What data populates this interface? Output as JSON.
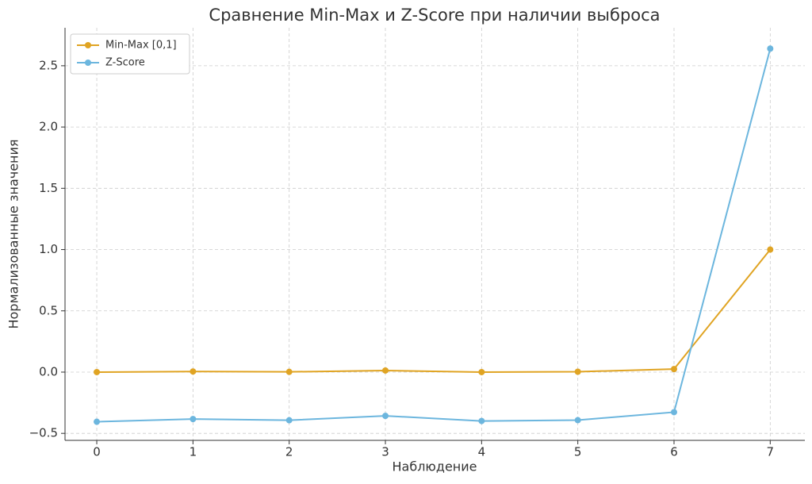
{
  "chart_data": {
    "type": "line",
    "title": "Сравнение Min-Max и Z-Score при наличии выброса",
    "x_label": "Наблюдение",
    "y_label": "Нормализованные значения",
    "x": [
      0,
      1,
      2,
      3,
      4,
      5,
      6,
      7
    ],
    "series": [
      {
        "name": "Min-Max [0,1]",
        "color": "#e0a423",
        "values": [
          0,
          0.005,
          0.002,
          0.013,
          0,
          0.003,
          0.025,
          1.0
        ]
      },
      {
        "name": "Z-Score",
        "color": "#6cb6de",
        "values": [
          -0.405,
          -0.383,
          -0.393,
          -0.357,
          -0.399,
          -0.392,
          -0.327,
          2.64
        ]
      }
    ],
    "xlim": [
      -0.33,
      7.36
    ],
    "ylim": [
      -0.557,
      2.81
    ],
    "xticks": [
      0,
      1,
      2,
      3,
      4,
      5,
      6,
      7
    ],
    "yticks": [
      {
        "value": -0.5,
        "label": "−0.5"
      },
      {
        "value": 0,
        "label": "0.0"
      },
      0.5,
      {
        "value": 1,
        "label": "1.0"
      },
      1.5,
      {
        "value": 2,
        "label": "2.0"
      },
      2.5
    ],
    "grid": true,
    "legend": "upper-left"
  }
}
